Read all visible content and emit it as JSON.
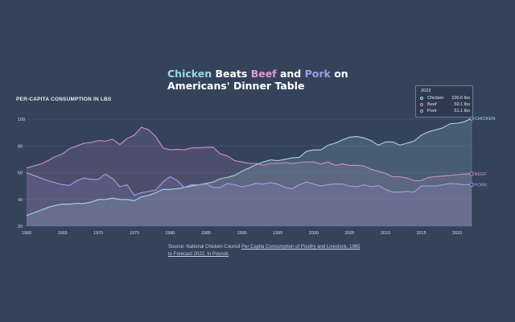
{
  "title": {
    "chicken": "Chicken",
    "beats": " Beats ",
    "beef": "Beef",
    "and": " and ",
    "pork": "Pork",
    "on": " on",
    "line2": "Americans' Dinner Table"
  },
  "colors": {
    "background": "#34435a",
    "chicken": "#a7d6df",
    "beef": "#cf8fd0",
    "pork": "#a79fe8",
    "grid": "#4a5970"
  },
  "legend": {
    "year": "2022",
    "items": [
      {
        "name": "Chicken",
        "value": "100.6 lbs",
        "color": "#a7d6df"
      },
      {
        "name": "Beef",
        "value": "59.1 lbs",
        "color": "#cf8fd0"
      },
      {
        "name": "Pork",
        "value": "51.1 lbs",
        "color": "#a79fe8"
      }
    ]
  },
  "source": {
    "prefix": "Source: National Chicken Council ",
    "link": "Per Capita Consumption of Poultry and Livestock, 1965 to Forecast 2022, in Pounds"
  },
  "chart_data": {
    "type": "area",
    "title": "Chicken Beats Beef and Pork on Americans' Dinner Table",
    "ylabel": "PER-CAPITA CONSUMPTION IN LBS",
    "xlabel": "",
    "xlim": [
      1960,
      2022
    ],
    "ylim": [
      20,
      100
    ],
    "y_ticks": [
      20,
      40,
      60,
      80,
      100
    ],
    "x_ticks": [
      1960,
      1965,
      1970,
      1975,
      1980,
      1985,
      1990,
      1995,
      2000,
      2005,
      2010,
      2015,
      2020
    ],
    "grid": "horizontal",
    "series": [
      {
        "name": "CHICKEN",
        "values": [
          [
            1960,
            28
          ],
          [
            1961,
            30
          ],
          [
            1962,
            32
          ],
          [
            1963,
            34
          ],
          [
            1964,
            35.5
          ],
          [
            1965,
            36.5
          ],
          [
            1966,
            36.5
          ],
          [
            1967,
            37
          ],
          [
            1968,
            37
          ],
          [
            1969,
            38
          ],
          [
            1970,
            40
          ],
          [
            1971,
            40
          ],
          [
            1972,
            41
          ],
          [
            1973,
            40
          ],
          [
            1974,
            40
          ],
          [
            1975,
            39
          ],
          [
            1976,
            42
          ],
          [
            1977,
            43
          ],
          [
            1978,
            45
          ],
          [
            1979,
            47.5
          ],
          [
            1980,
            47.5
          ],
          [
            1981,
            48
          ],
          [
            1982,
            49
          ],
          [
            1983,
            50
          ],
          [
            1984,
            51
          ],
          [
            1985,
            52
          ],
          [
            1986,
            53
          ],
          [
            1987,
            55.5
          ],
          [
            1988,
            56.5
          ],
          [
            1989,
            58
          ],
          [
            1990,
            61
          ],
          [
            1991,
            63.5
          ],
          [
            1992,
            66
          ],
          [
            1993,
            68
          ],
          [
            1994,
            69.5
          ],
          [
            1995,
            69
          ],
          [
            1996,
            70
          ],
          [
            1997,
            71
          ],
          [
            1998,
            71.5
          ],
          [
            1999,
            76
          ],
          [
            2000,
            77
          ],
          [
            2001,
            77
          ],
          [
            2002,
            80.5
          ],
          [
            2003,
            82
          ],
          [
            2004,
            84.5
          ],
          [
            2005,
            86.5
          ],
          [
            2006,
            87
          ],
          [
            2007,
            86
          ],
          [
            2008,
            84
          ],
          [
            2009,
            80.5
          ],
          [
            2010,
            83
          ],
          [
            2011,
            83
          ],
          [
            2012,
            80.5
          ],
          [
            2013,
            82
          ],
          [
            2014,
            83.5
          ],
          [
            2015,
            88
          ],
          [
            2016,
            90.5
          ],
          [
            2017,
            92
          ],
          [
            2018,
            93.5
          ],
          [
            2019,
            96.5
          ],
          [
            2020,
            97
          ],
          [
            2021,
            98
          ],
          [
            2022,
            100.6
          ]
        ]
      },
      {
        "name": "BEEF",
        "values": [
          [
            1960,
            63.5
          ],
          [
            1961,
            65
          ],
          [
            1962,
            66.5
          ],
          [
            1963,
            69
          ],
          [
            1964,
            72
          ],
          [
            1965,
            74
          ],
          [
            1966,
            78
          ],
          [
            1967,
            80
          ],
          [
            1968,
            82
          ],
          [
            1969,
            82.5
          ],
          [
            1970,
            84
          ],
          [
            1971,
            83.5
          ],
          [
            1972,
            85
          ],
          [
            1973,
            81
          ],
          [
            1974,
            85.5
          ],
          [
            1975,
            88
          ],
          [
            1976,
            94
          ],
          [
            1977,
            92
          ],
          [
            1978,
            87
          ],
          [
            1979,
            78.5
          ],
          [
            1980,
            77
          ],
          [
            1981,
            77.5
          ],
          [
            1982,
            77
          ],
          [
            1983,
            78.5
          ],
          [
            1984,
            78.5
          ],
          [
            1985,
            79
          ],
          [
            1986,
            79
          ],
          [
            1987,
            74
          ],
          [
            1988,
            72.5
          ],
          [
            1989,
            69
          ],
          [
            1990,
            68
          ],
          [
            1991,
            67
          ],
          [
            1992,
            67
          ],
          [
            1993,
            65.5
          ],
          [
            1994,
            67
          ],
          [
            1995,
            67
          ],
          [
            1996,
            67.5
          ],
          [
            1997,
            67
          ],
          [
            1998,
            67.5
          ],
          [
            1999,
            68
          ],
          [
            2000,
            68
          ],
          [
            2001,
            66.5
          ],
          [
            2002,
            68
          ],
          [
            2003,
            65.5
          ],
          [
            2004,
            66.5
          ],
          [
            2005,
            65.5
          ],
          [
            2006,
            65.5
          ],
          [
            2007,
            65
          ],
          [
            2008,
            62.5
          ],
          [
            2009,
            61
          ],
          [
            2010,
            59.5
          ],
          [
            2011,
            57
          ],
          [
            2012,
            57
          ],
          [
            2013,
            56
          ],
          [
            2014,
            54
          ],
          [
            2015,
            54
          ],
          [
            2016,
            56.5
          ],
          [
            2017,
            57
          ],
          [
            2018,
            57.5
          ],
          [
            2019,
            58
          ],
          [
            2020,
            58.5
          ],
          [
            2021,
            59
          ],
          [
            2022,
            59.1
          ]
        ]
      },
      {
        "name": "PORK",
        "values": [
          [
            1960,
            60
          ],
          [
            1961,
            58
          ],
          [
            1962,
            56
          ],
          [
            1963,
            54
          ],
          [
            1964,
            52.5
          ],
          [
            1965,
            51
          ],
          [
            1966,
            50.5
          ],
          [
            1967,
            54
          ],
          [
            1968,
            56
          ],
          [
            1969,
            55
          ],
          [
            1970,
            55
          ],
          [
            1971,
            59
          ],
          [
            1972,
            55.5
          ],
          [
            1973,
            49.5
          ],
          [
            1974,
            51
          ],
          [
            1975,
            43
          ],
          [
            1976,
            45
          ],
          [
            1977,
            46
          ],
          [
            1978,
            47
          ],
          [
            1979,
            53
          ],
          [
            1980,
            57
          ],
          [
            1981,
            54
          ],
          [
            1982,
            49
          ],
          [
            1983,
            51
          ],
          [
            1984,
            51
          ],
          [
            1985,
            51.5
          ],
          [
            1986,
            49
          ],
          [
            1987,
            49
          ],
          [
            1988,
            52
          ],
          [
            1989,
            51
          ],
          [
            1990,
            49.5
          ],
          [
            1991,
            50.5
          ],
          [
            1992,
            52
          ],
          [
            1993,
            51.5
          ],
          [
            1994,
            52.5
          ],
          [
            1995,
            51.5
          ],
          [
            1996,
            49
          ],
          [
            1997,
            48
          ],
          [
            1998,
            51
          ],
          [
            1999,
            53
          ],
          [
            2000,
            51.5
          ],
          [
            2001,
            50
          ],
          [
            2002,
            51
          ],
          [
            2003,
            51.5
          ],
          [
            2004,
            51.5
          ],
          [
            2005,
            50
          ],
          [
            2006,
            49.5
          ],
          [
            2007,
            51
          ],
          [
            2008,
            49.5
          ],
          [
            2009,
            50.5
          ],
          [
            2010,
            47.5
          ],
          [
            2011,
            45.5
          ],
          [
            2012,
            45.5
          ],
          [
            2013,
            46
          ],
          [
            2014,
            45.5
          ],
          [
            2015,
            50
          ],
          [
            2016,
            50
          ],
          [
            2017,
            50
          ],
          [
            2018,
            51
          ],
          [
            2019,
            52
          ],
          [
            2020,
            51.5
          ],
          [
            2021,
            51
          ],
          [
            2022,
            51.1
          ]
        ]
      }
    ],
    "end_labels": [
      "CHICKEN",
      "BEEF",
      "PORK"
    ],
    "annotation": "2022"
  }
}
